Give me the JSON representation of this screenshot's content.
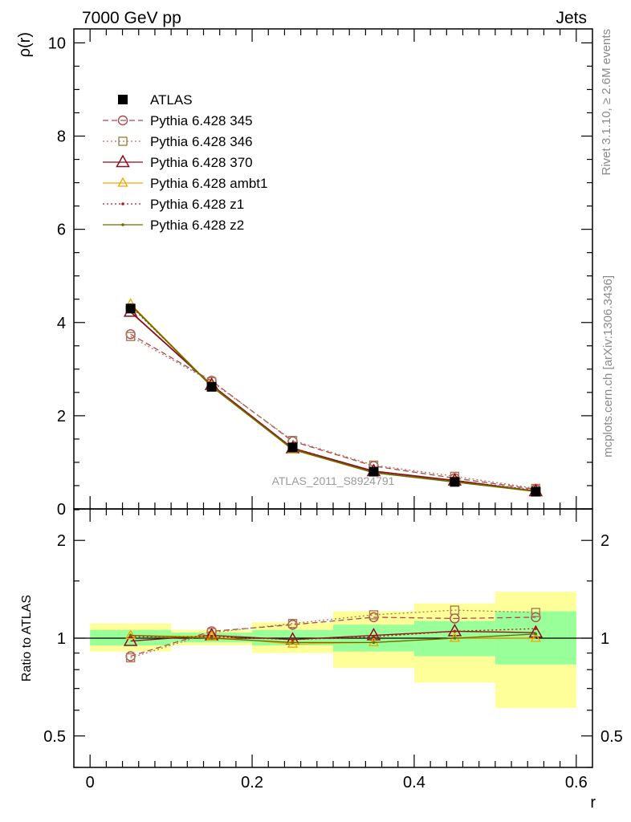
{
  "header": {
    "left_title": "7000 GeV pp",
    "right_title": "Jets"
  },
  "side_text": {
    "rivet": "Rivet 3.1.10, ≥ 2.6M events",
    "mcplots": "mcplots.cern.ch [arXiv:1306.3436]"
  },
  "watermark": "ATLAS_2011_S8924791",
  "colors": {
    "atlas": "#000000",
    "p345": "#b2474f",
    "p346": "#a67c52",
    "p370": "#8b0e1a",
    "ambt1": "#f5a300",
    "z1": "#c0151a",
    "z2": "#6b6b00",
    "band_stat": "#99ff99",
    "band_total": "#ffff99"
  },
  "chart_data": [
    {
      "type": "line",
      "panel": "main",
      "ylabel": "ρ(r)",
      "xlabel": "",
      "xlim": [
        -0.02,
        0.62
      ],
      "ylim": [
        0,
        10.3
      ],
      "yticks": [
        0,
        2,
        4,
        6,
        8,
        10
      ],
      "yticklabels": [
        "0",
        "2",
        "4",
        "6",
        "8",
        "10"
      ],
      "x": [
        0.05,
        0.15,
        0.25,
        0.35,
        0.45,
        0.55
      ],
      "legend_position": "top-left",
      "series": [
        {
          "key": "atlas",
          "name": "ATLAS",
          "values": [
            4.3,
            2.62,
            1.32,
            0.8,
            0.58,
            0.37
          ],
          "marker": "square-filled",
          "line": "none"
        },
        {
          "key": "p345",
          "name": "Pythia 6.428 345",
          "values": [
            3.75,
            2.75,
            1.45,
            0.92,
            0.66,
            0.42
          ],
          "marker": "circle-open",
          "line": "dashed"
        },
        {
          "key": "p346",
          "name": "Pythia 6.428 346",
          "values": [
            3.7,
            2.73,
            1.47,
            0.94,
            0.7,
            0.44
          ],
          "marker": "square-open",
          "line": "dotted"
        },
        {
          "key": "p370",
          "name": "Pythia 6.428 370",
          "values": [
            4.23,
            2.66,
            1.3,
            0.81,
            0.61,
            0.38
          ],
          "marker": "triangle-open-large",
          "line": "solid"
        },
        {
          "key": "ambt1",
          "name": "Pythia 6.428 ambt1",
          "values": [
            4.4,
            2.64,
            1.27,
            0.78,
            0.58,
            0.37
          ],
          "marker": "triangle-open",
          "line": "solid"
        },
        {
          "key": "z1",
          "name": "Pythia 6.428 z1",
          "values": [
            4.35,
            2.65,
            1.31,
            0.81,
            0.61,
            0.4
          ],
          "marker": "dot",
          "line": "dotted"
        },
        {
          "key": "z2",
          "name": "Pythia 6.428 z2",
          "values": [
            4.38,
            2.63,
            1.28,
            0.78,
            0.58,
            0.38
          ],
          "marker": "dot",
          "line": "solid"
        }
      ]
    },
    {
      "type": "line",
      "panel": "ratio",
      "ylabel": "Ratio to ATLAS",
      "xlabel": "r",
      "scale": "log",
      "xlim": [
        -0.02,
        0.62
      ],
      "ylim": [
        0.4,
        2.5
      ],
      "yticks": [
        0.5,
        1,
        2
      ],
      "yticklabels": [
        "0.5",
        "1",
        "2"
      ],
      "xticks": [
        0,
        0.2,
        0.4,
        0.6
      ],
      "xticklabels": [
        "0",
        "0.2",
        "0.4",
        "0.6"
      ],
      "x": [
        0.05,
        0.15,
        0.25,
        0.35,
        0.45,
        0.55
      ],
      "bands": [
        {
          "xmin": 0.0,
          "xmax": 0.1,
          "stat": [
            0.95,
            1.06
          ],
          "total": [
            0.91,
            1.11
          ]
        },
        {
          "xmin": 0.1,
          "xmax": 0.2,
          "stat": [
            0.97,
            1.04
          ],
          "total": [
            0.95,
            1.06
          ]
        },
        {
          "xmin": 0.2,
          "xmax": 0.3,
          "stat": [
            0.95,
            1.06
          ],
          "total": [
            0.9,
            1.12
          ]
        },
        {
          "xmin": 0.3,
          "xmax": 0.4,
          "stat": [
            0.91,
            1.1
          ],
          "total": [
            0.81,
            1.21
          ]
        },
        {
          "xmin": 0.4,
          "xmax": 0.5,
          "stat": [
            0.88,
            1.13
          ],
          "total": [
            0.73,
            1.28
          ]
        },
        {
          "xmin": 0.5,
          "xmax": 0.6,
          "stat": [
            0.83,
            1.21
          ],
          "total": [
            0.61,
            1.39
          ]
        }
      ],
      "series": [
        {
          "key": "p345",
          "values": [
            0.88,
            1.05,
            1.1,
            1.16,
            1.15,
            1.16
          ]
        },
        {
          "key": "p346",
          "values": [
            0.87,
            1.04,
            1.11,
            1.18,
            1.22,
            1.2
          ]
        },
        {
          "key": "p370",
          "values": [
            0.98,
            1.02,
            0.99,
            1.02,
            1.05,
            1.04
          ]
        },
        {
          "key": "ambt1",
          "values": [
            1.02,
            1.01,
            0.96,
            0.97,
            1.0,
            1.0
          ]
        },
        {
          "key": "z1",
          "values": [
            1.01,
            1.01,
            0.99,
            1.01,
            1.05,
            1.07
          ]
        },
        {
          "key": "z2",
          "values": [
            1.02,
            1.0,
            0.97,
            0.97,
            1.0,
            1.03
          ]
        }
      ]
    }
  ]
}
